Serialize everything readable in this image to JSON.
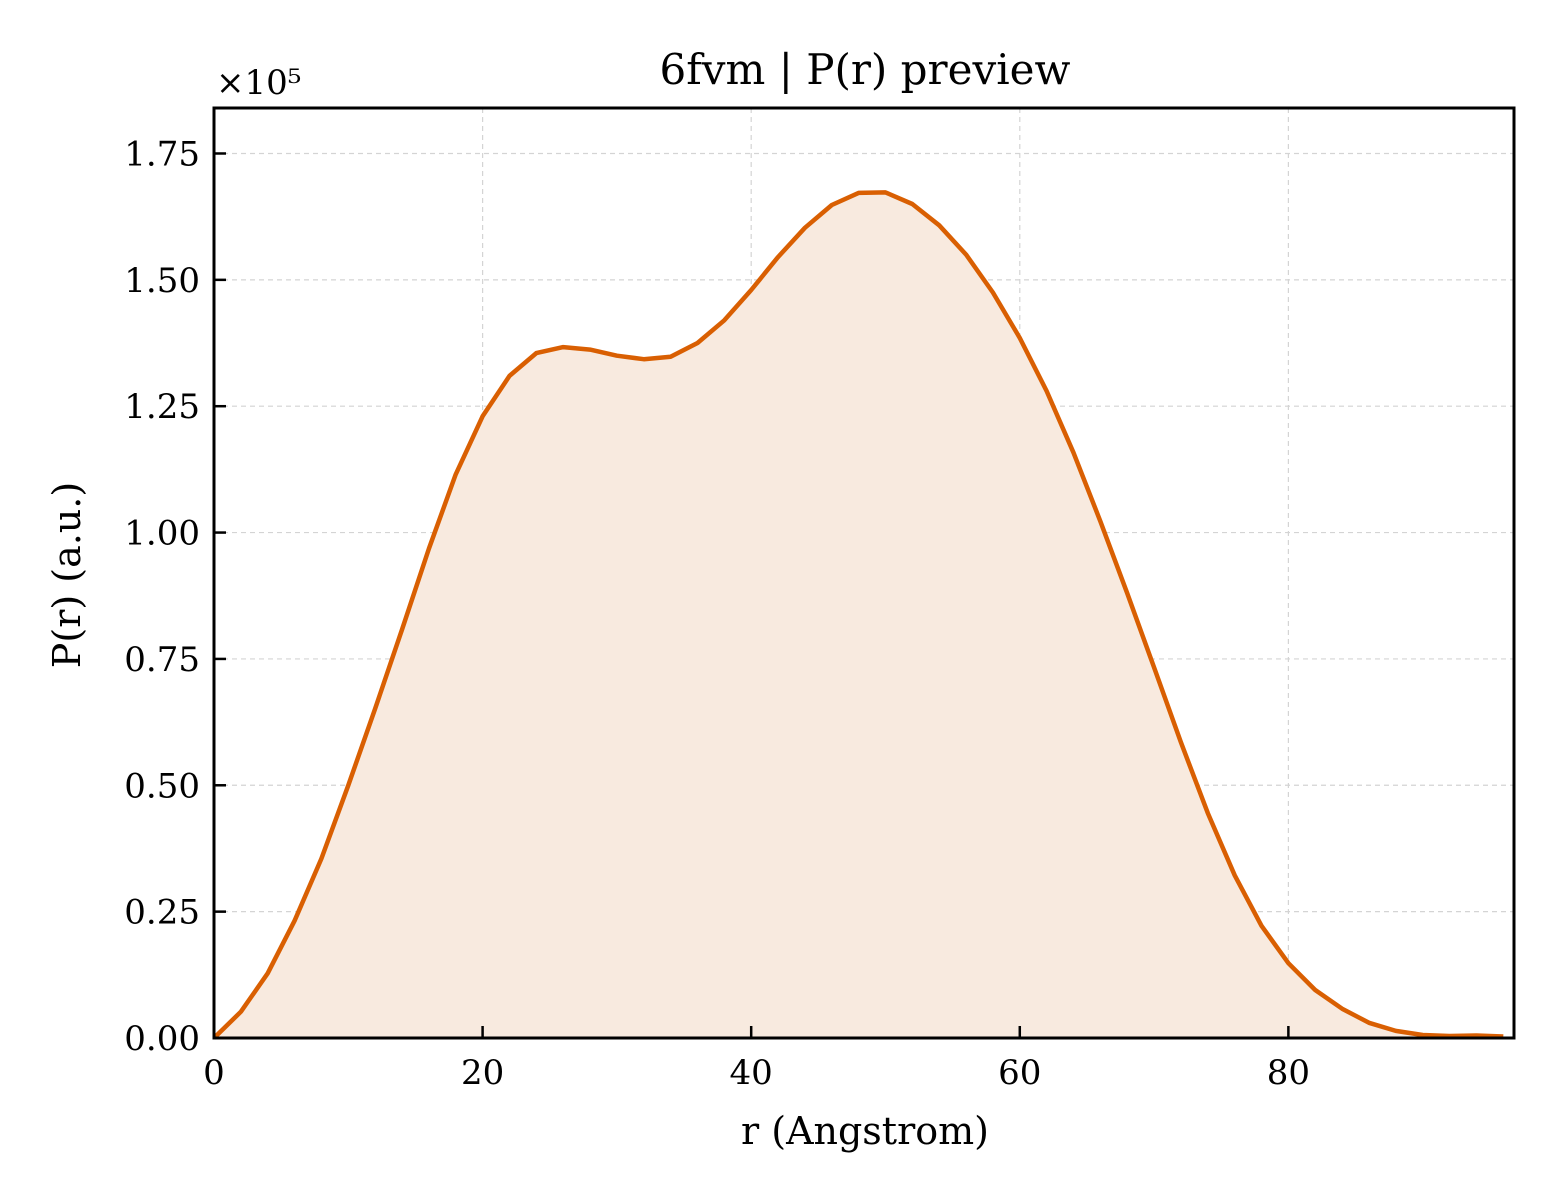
{
  "chart_data": {
    "type": "area",
    "title": "6fvm | P(r) preview",
    "xlabel": "r (Angstrom)",
    "ylabel": "P(r) (a.u.)",
    "y_multiplier_label": "×10⁵",
    "xlim": [
      0,
      96.8
    ],
    "ylim": [
      0,
      1.84
    ],
    "x_ticks": [
      0,
      20,
      40,
      60,
      80
    ],
    "x_tick_labels": [
      "0",
      "20",
      "40",
      "60",
      "80"
    ],
    "y_ticks": [
      0,
      0.25,
      0.5,
      0.75,
      1.0,
      1.25,
      1.5,
      1.75
    ],
    "y_tick_labels": [
      "0.00",
      "0.25",
      "0.50",
      "0.75",
      "1.00",
      "1.25",
      "1.50",
      "1.75"
    ],
    "grid": true,
    "line_color": "#d95f02",
    "fill_color": "#f8eadf",
    "series": [
      {
        "x": [
          0,
          2,
          4,
          6,
          8,
          10,
          12,
          14,
          16,
          18,
          20,
          22,
          24,
          26,
          28,
          30,
          32,
          34,
          36,
          38,
          40,
          42,
          44,
          46,
          48,
          50,
          52,
          54,
          56,
          58,
          60,
          62,
          64,
          66,
          68,
          70,
          72,
          74,
          76,
          78,
          80,
          82,
          84,
          86,
          88,
          90,
          92,
          94,
          96
        ],
        "y": [
          0.0,
          0.052,
          0.128,
          0.232,
          0.355,
          0.5,
          0.652,
          0.808,
          0.968,
          1.115,
          1.23,
          1.31,
          1.355,
          1.367,
          1.362,
          1.35,
          1.343,
          1.348,
          1.375,
          1.42,
          1.48,
          1.545,
          1.603,
          1.648,
          1.672,
          1.673,
          1.65,
          1.608,
          1.55,
          1.475,
          1.385,
          1.28,
          1.158,
          1.022,
          0.88,
          0.733,
          0.585,
          0.445,
          0.322,
          0.222,
          0.148,
          0.095,
          0.058,
          0.03,
          0.014,
          0.006,
          0.004,
          0.005,
          0.003
        ]
      }
    ]
  }
}
